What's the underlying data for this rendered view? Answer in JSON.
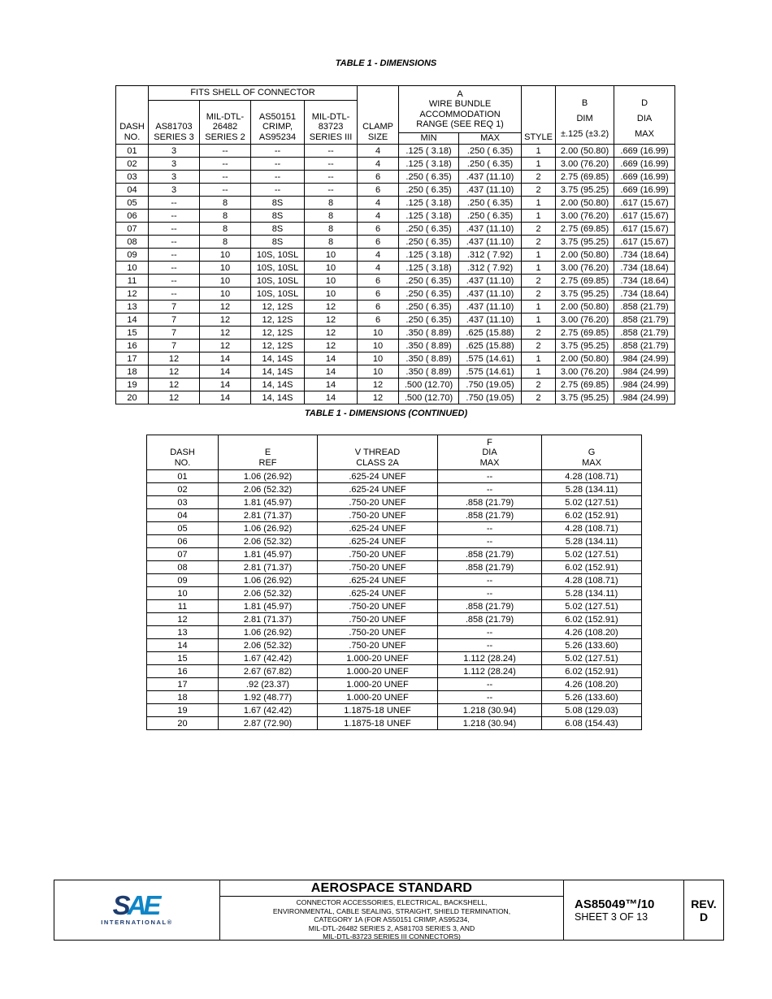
{
  "titles": {
    "table1": "TABLE 1 - DIMENSIONS",
    "table2": "TABLE 1 - DIMENSIONS (CONTINUED)"
  },
  "table1": {
    "group_headers": {
      "fits_shell": "FITS SHELL OF CONNECTOR",
      "wire_bundle": "A\nWIRE BUNDLE\nACCOMMODATION\nRANGE (SEE REQ 1)"
    },
    "headers": {
      "dash_no": "DASH\nNO.",
      "as81703": "AS81703\nSERIES 3",
      "mil26482": "MIL-DTL-\n26482\nSERIES 2",
      "as50151": "AS50151\nCRIMP,\nAS95234",
      "mil83723": "MIL-DTL-\n83723\nSERIES III",
      "clamp": "CLAMP\nSIZE",
      "min": "MIN",
      "max": "MAX",
      "style": "STYLE",
      "b_dim": "B\nDIM\n±.125 (±3.2)",
      "d_dia": "D\nDIA\nMAX"
    },
    "rows": [
      [
        "01",
        "3",
        "--",
        "--",
        "--",
        "4",
        ".125 ( 3.18)",
        ".250 ( 6.35)",
        "1",
        "2.00 (50.80)",
        ".669 (16.99)"
      ],
      [
        "02",
        "3",
        "--",
        "--",
        "--",
        "4",
        ".125 ( 3.18)",
        ".250 ( 6.35)",
        "1",
        "3.00 (76.20)",
        ".669 (16.99)"
      ],
      [
        "03",
        "3",
        "--",
        "--",
        "--",
        "6",
        ".250 ( 6.35)",
        ".437 (11.10)",
        "2",
        "2.75 (69.85)",
        ".669 (16.99)"
      ],
      [
        "04",
        "3",
        "--",
        "--",
        "--",
        "6",
        ".250 ( 6.35)",
        ".437 (11.10)",
        "2",
        "3.75 (95.25)",
        ".669 (16.99)"
      ],
      [
        "05",
        "--",
        "8",
        "8S",
        "8",
        "4",
        ".125 ( 3.18)",
        ".250 ( 6.35)",
        "1",
        "2.00 (50.80)",
        ".617 (15.67)"
      ],
      [
        "06",
        "--",
        "8",
        "8S",
        "8",
        "4",
        ".125 ( 3.18)",
        ".250 ( 6.35)",
        "1",
        "3.00 (76.20)",
        ".617 (15.67)"
      ],
      [
        "07",
        "--",
        "8",
        "8S",
        "8",
        "6",
        ".250 ( 6.35)",
        ".437 (11.10)",
        "2",
        "2.75 (69.85)",
        ".617 (15.67)"
      ],
      [
        "08",
        "--",
        "8",
        "8S",
        "8",
        "6",
        ".250 ( 6.35)",
        ".437 (11.10)",
        "2",
        "3.75 (95.25)",
        ".617 (15.67)"
      ],
      [
        "09",
        "--",
        "10",
        "10S, 10SL",
        "10",
        "4",
        ".125 ( 3.18)",
        ".312 ( 7.92)",
        "1",
        "2.00 (50.80)",
        ".734 (18.64)"
      ],
      [
        "10",
        "--",
        "10",
        "10S, 10SL",
        "10",
        "4",
        ".125 ( 3.18)",
        ".312 ( 7.92)",
        "1",
        "3.00 (76.20)",
        ".734 (18.64)"
      ],
      [
        "11",
        "--",
        "10",
        "10S, 10SL",
        "10",
        "6",
        ".250 ( 6.35)",
        ".437 (11.10)",
        "2",
        "2.75 (69.85)",
        ".734 (18.64)"
      ],
      [
        "12",
        "--",
        "10",
        "10S, 10SL",
        "10",
        "6",
        ".250 ( 6.35)",
        ".437 (11.10)",
        "2",
        "3.75 (95.25)",
        ".734 (18.64)"
      ],
      [
        "13",
        "7",
        "12",
        "12, 12S",
        "12",
        "6",
        ".250 ( 6.35)",
        ".437 (11.10)",
        "1",
        "2.00 (50.80)",
        ".858 (21.79)"
      ],
      [
        "14",
        "7",
        "12",
        "12, 12S",
        "12",
        "6",
        ".250 ( 6.35)",
        ".437 (11.10)",
        "1",
        "3.00 (76.20)",
        ".858 (21.79)"
      ],
      [
        "15",
        "7",
        "12",
        "12, 12S",
        "12",
        "10",
        ".350 ( 8.89)",
        ".625 (15.88)",
        "2",
        "2.75 (69.85)",
        ".858 (21.79)"
      ],
      [
        "16",
        "7",
        "12",
        "12, 12S",
        "12",
        "10",
        ".350 ( 8.89)",
        ".625 (15.88)",
        "2",
        "3.75 (95.25)",
        ".858 (21.79)"
      ],
      [
        "17",
        "12",
        "14",
        "14, 14S",
        "14",
        "10",
        ".350 ( 8.89)",
        ".575 (14.61)",
        "1",
        "2.00 (50.80)",
        ".984 (24.99)"
      ],
      [
        "18",
        "12",
        "14",
        "14, 14S",
        "14",
        "10",
        ".350 ( 8.89)",
        ".575 (14.61)",
        "1",
        "3.00 (76.20)",
        ".984 (24.99)"
      ],
      [
        "19",
        "12",
        "14",
        "14, 14S",
        "14",
        "12",
        ".500 (12.70)",
        ".750 (19.05)",
        "2",
        "2.75 (69.85)",
        ".984 (24.99)"
      ],
      [
        "20",
        "12",
        "14",
        "14, 14S",
        "14",
        "12",
        ".500 (12.70)",
        ".750 (19.05)",
        "2",
        "3.75 (95.25)",
        ".984 (24.99)"
      ]
    ]
  },
  "table2": {
    "headers": {
      "dash_no": "DASH\nNO.",
      "e_ref": "E\nREF",
      "v_thread": "V THREAD\nCLASS 2A",
      "f_dia": "F\nDIA\nMAX",
      "g_max": "G\nMAX"
    },
    "rows": [
      [
        "01",
        "1.06 (26.92)",
        ".625-24 UNEF",
        "--",
        "4.28 (108.71)"
      ],
      [
        "02",
        "2.06 (52.32)",
        ".625-24 UNEF",
        "--",
        "5.28 (134.11)"
      ],
      [
        "03",
        "1.81 (45.97)",
        ".750-20 UNEF",
        ".858 (21.79)",
        "5.02 (127.51)"
      ],
      [
        "04",
        "2.81 (71.37)",
        ".750-20 UNEF",
        ".858 (21.79)",
        "6.02 (152.91)"
      ],
      [
        "05",
        "1.06 (26.92)",
        ".625-24 UNEF",
        "--",
        "4.28 (108.71)"
      ],
      [
        "06",
        "2.06 (52.32)",
        ".625-24 UNEF",
        "--",
        "5.28 (134.11)"
      ],
      [
        "07",
        "1.81 (45.97)",
        ".750-20 UNEF",
        ".858 (21.79)",
        "5.02 (127.51)"
      ],
      [
        "08",
        "2.81 (71.37)",
        ".750-20 UNEF",
        ".858 (21.79)",
        "6.02 (152.91)"
      ],
      [
        "09",
        "1.06 (26.92)",
        ".625-24 UNEF",
        "--",
        "4.28 (108.71)"
      ],
      [
        "10",
        "2.06 (52.32)",
        ".625-24 UNEF",
        "--",
        "5.28 (134.11)"
      ],
      [
        "11",
        "1.81 (45.97)",
        ".750-20 UNEF",
        ".858 (21.79)",
        "5.02 (127.51)"
      ],
      [
        "12",
        "2.81 (71.37)",
        ".750-20 UNEF",
        ".858 (21.79)",
        "6.02 (152.91)"
      ],
      [
        "13",
        "1.06 (26.92)",
        ".750-20 UNEF",
        "--",
        "4.26 (108.20)"
      ],
      [
        "14",
        "2.06 (52.32)",
        ".750-20 UNEF",
        "--",
        "5.26 (133.60)"
      ],
      [
        "15",
        "1.67 (42.42)",
        "1.000-20 UNEF",
        "1.112 (28.24)",
        "5.02 (127.51)"
      ],
      [
        "16",
        "2.67 (67.82)",
        "1.000-20 UNEF",
        "1.112 (28.24)",
        "6.02 (152.91)"
      ],
      [
        "17",
        ".92 (23.37)",
        "1.000-20 UNEF",
        "--",
        "4.26 (108.20)"
      ],
      [
        "18",
        "1.92 (48.77)",
        "1.000-20 UNEF",
        "--",
        "5.26 (133.60)"
      ],
      [
        "19",
        "1.67 (42.42)",
        "1.1875-18 UNEF",
        "1.218 (30.94)",
        "5.08 (129.03)"
      ],
      [
        "20",
        "2.87 (72.90)",
        "1.1875-18 UNEF",
        "1.218 (30.94)",
        "6.08 (154.43)"
      ]
    ]
  },
  "footer": {
    "logo": {
      "letter_s": "S",
      "letters_ae": "AE",
      "sub": "INTERNATIONAL®"
    },
    "title": "AEROSPACE STANDARD",
    "subtitle": "CONNECTOR ACCESSORIES, ELECTRICAL, BACKSHELL,\nENVIRONMENTAL, CABLE SEALING, STRAIGHT, SHIELD TERMINATION,\nCATEGORY 1A (FOR AS50151 CRIMP, AS95234,\nMIL-DTL-26482 SERIES 2, AS81703 SERIES 3, AND\nMIL-DTL-83723 SERIES III CONNECTORS)",
    "doc_number": "AS85049™/10",
    "sheet": "SHEET 3 OF 13",
    "rev_label": "REV.",
    "rev_value": "D"
  },
  "colors": {
    "logo_navy": "#1e3c6e",
    "logo_blue": "#0e85c6",
    "text": "#000000",
    "background": "#ffffff"
  }
}
